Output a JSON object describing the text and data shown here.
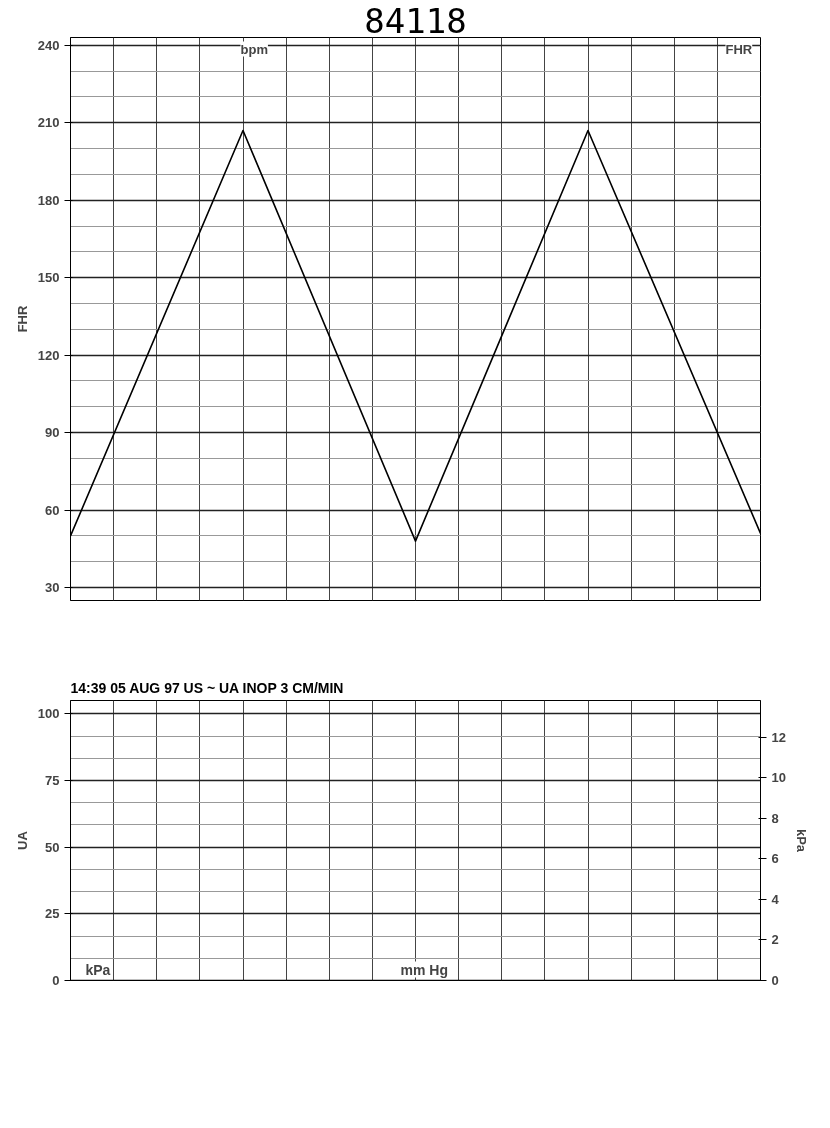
{
  "chart_data": [
    {
      "type": "line",
      "title": "84118",
      "ylabel": "FHR",
      "annotations": [
        "bpm",
        "FHR"
      ],
      "categories": [
        null,
        null,
        null,
        null,
        null
      ],
      "series": [
        {
          "color": "#000000",
          "values": [
            50,
            207,
            48,
            207,
            51
          ]
        }
      ],
      "ylim": [
        25,
        243
      ],
      "yticks": [
        30,
        60,
        90,
        120,
        150,
        180,
        210,
        240
      ],
      "grid": true,
      "marker": "none",
      "line_style": "solid",
      "tick_labels": "y"
    },
    {
      "type": "line",
      "ylabel": "UA",
      "y2label": "kPa",
      "annotations": [
        "14:39 05 AUG 97 US ~ UA INOP 3 CM/MIN",
        "mm Hg",
        "kPa"
      ],
      "categories": [
        null,
        null,
        null,
        null,
        null
      ],
      "series": [
        {
          "color": "#000000",
          "values": [
            null,
            null,
            null,
            null,
            null
          ]
        }
      ],
      "ylim": [
        0,
        105
      ],
      "yticks": [
        0,
        25,
        50,
        75,
        100
      ],
      "y2lim": [
        0,
        13.8
      ],
      "y2ticks": [
        0,
        2,
        4,
        6,
        8,
        10,
        12
      ],
      "grid": true,
      "tick_labels": "y"
    }
  ]
}
